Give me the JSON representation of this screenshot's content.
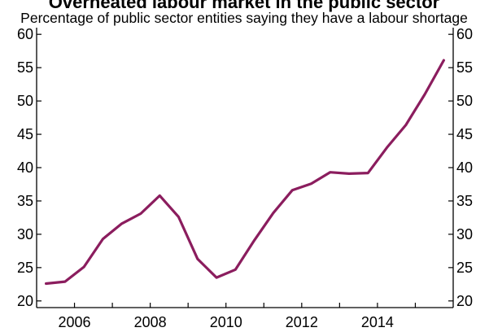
{
  "chart_data": {
    "type": "line",
    "title": "Overheated labour market in the public sector",
    "subtitle": "Percentage of public sector entities saying they have a labour shortage",
    "xlabel": "",
    "ylabel": "",
    "xlim": [
      2005,
      2016
    ],
    "ylim": [
      19,
      61
    ],
    "x_ticks": [
      2006,
      2008,
      2010,
      2012,
      2014
    ],
    "y_ticks": [
      20,
      25,
      30,
      35,
      40,
      45,
      50,
      55,
      60
    ],
    "y_axis_both_sides": true,
    "grid": false,
    "legend": "none",
    "line_color": "#8b1d5e",
    "series": [
      {
        "x": [
          2005.25,
          2005.75,
          2006.25,
          2006.75,
          2007.25,
          2007.75,
          2008.25,
          2008.75,
          2009.25,
          2009.75,
          2010.25,
          2010.75,
          2011.25,
          2011.75,
          2012.25,
          2012.75,
          2013.25,
          2013.75,
          2014.25,
          2014.75,
          2015.25,
          2015.75
        ],
        "values": [
          22.6,
          22.9,
          25.1,
          29.3,
          31.6,
          33.1,
          35.8,
          32.6,
          26.3,
          23.5,
          24.7,
          29.1,
          33.2,
          36.6,
          37.6,
          39.3,
          39.1,
          39.2,
          43.0,
          46.4,
          51.0,
          56.1
        ]
      }
    ]
  }
}
